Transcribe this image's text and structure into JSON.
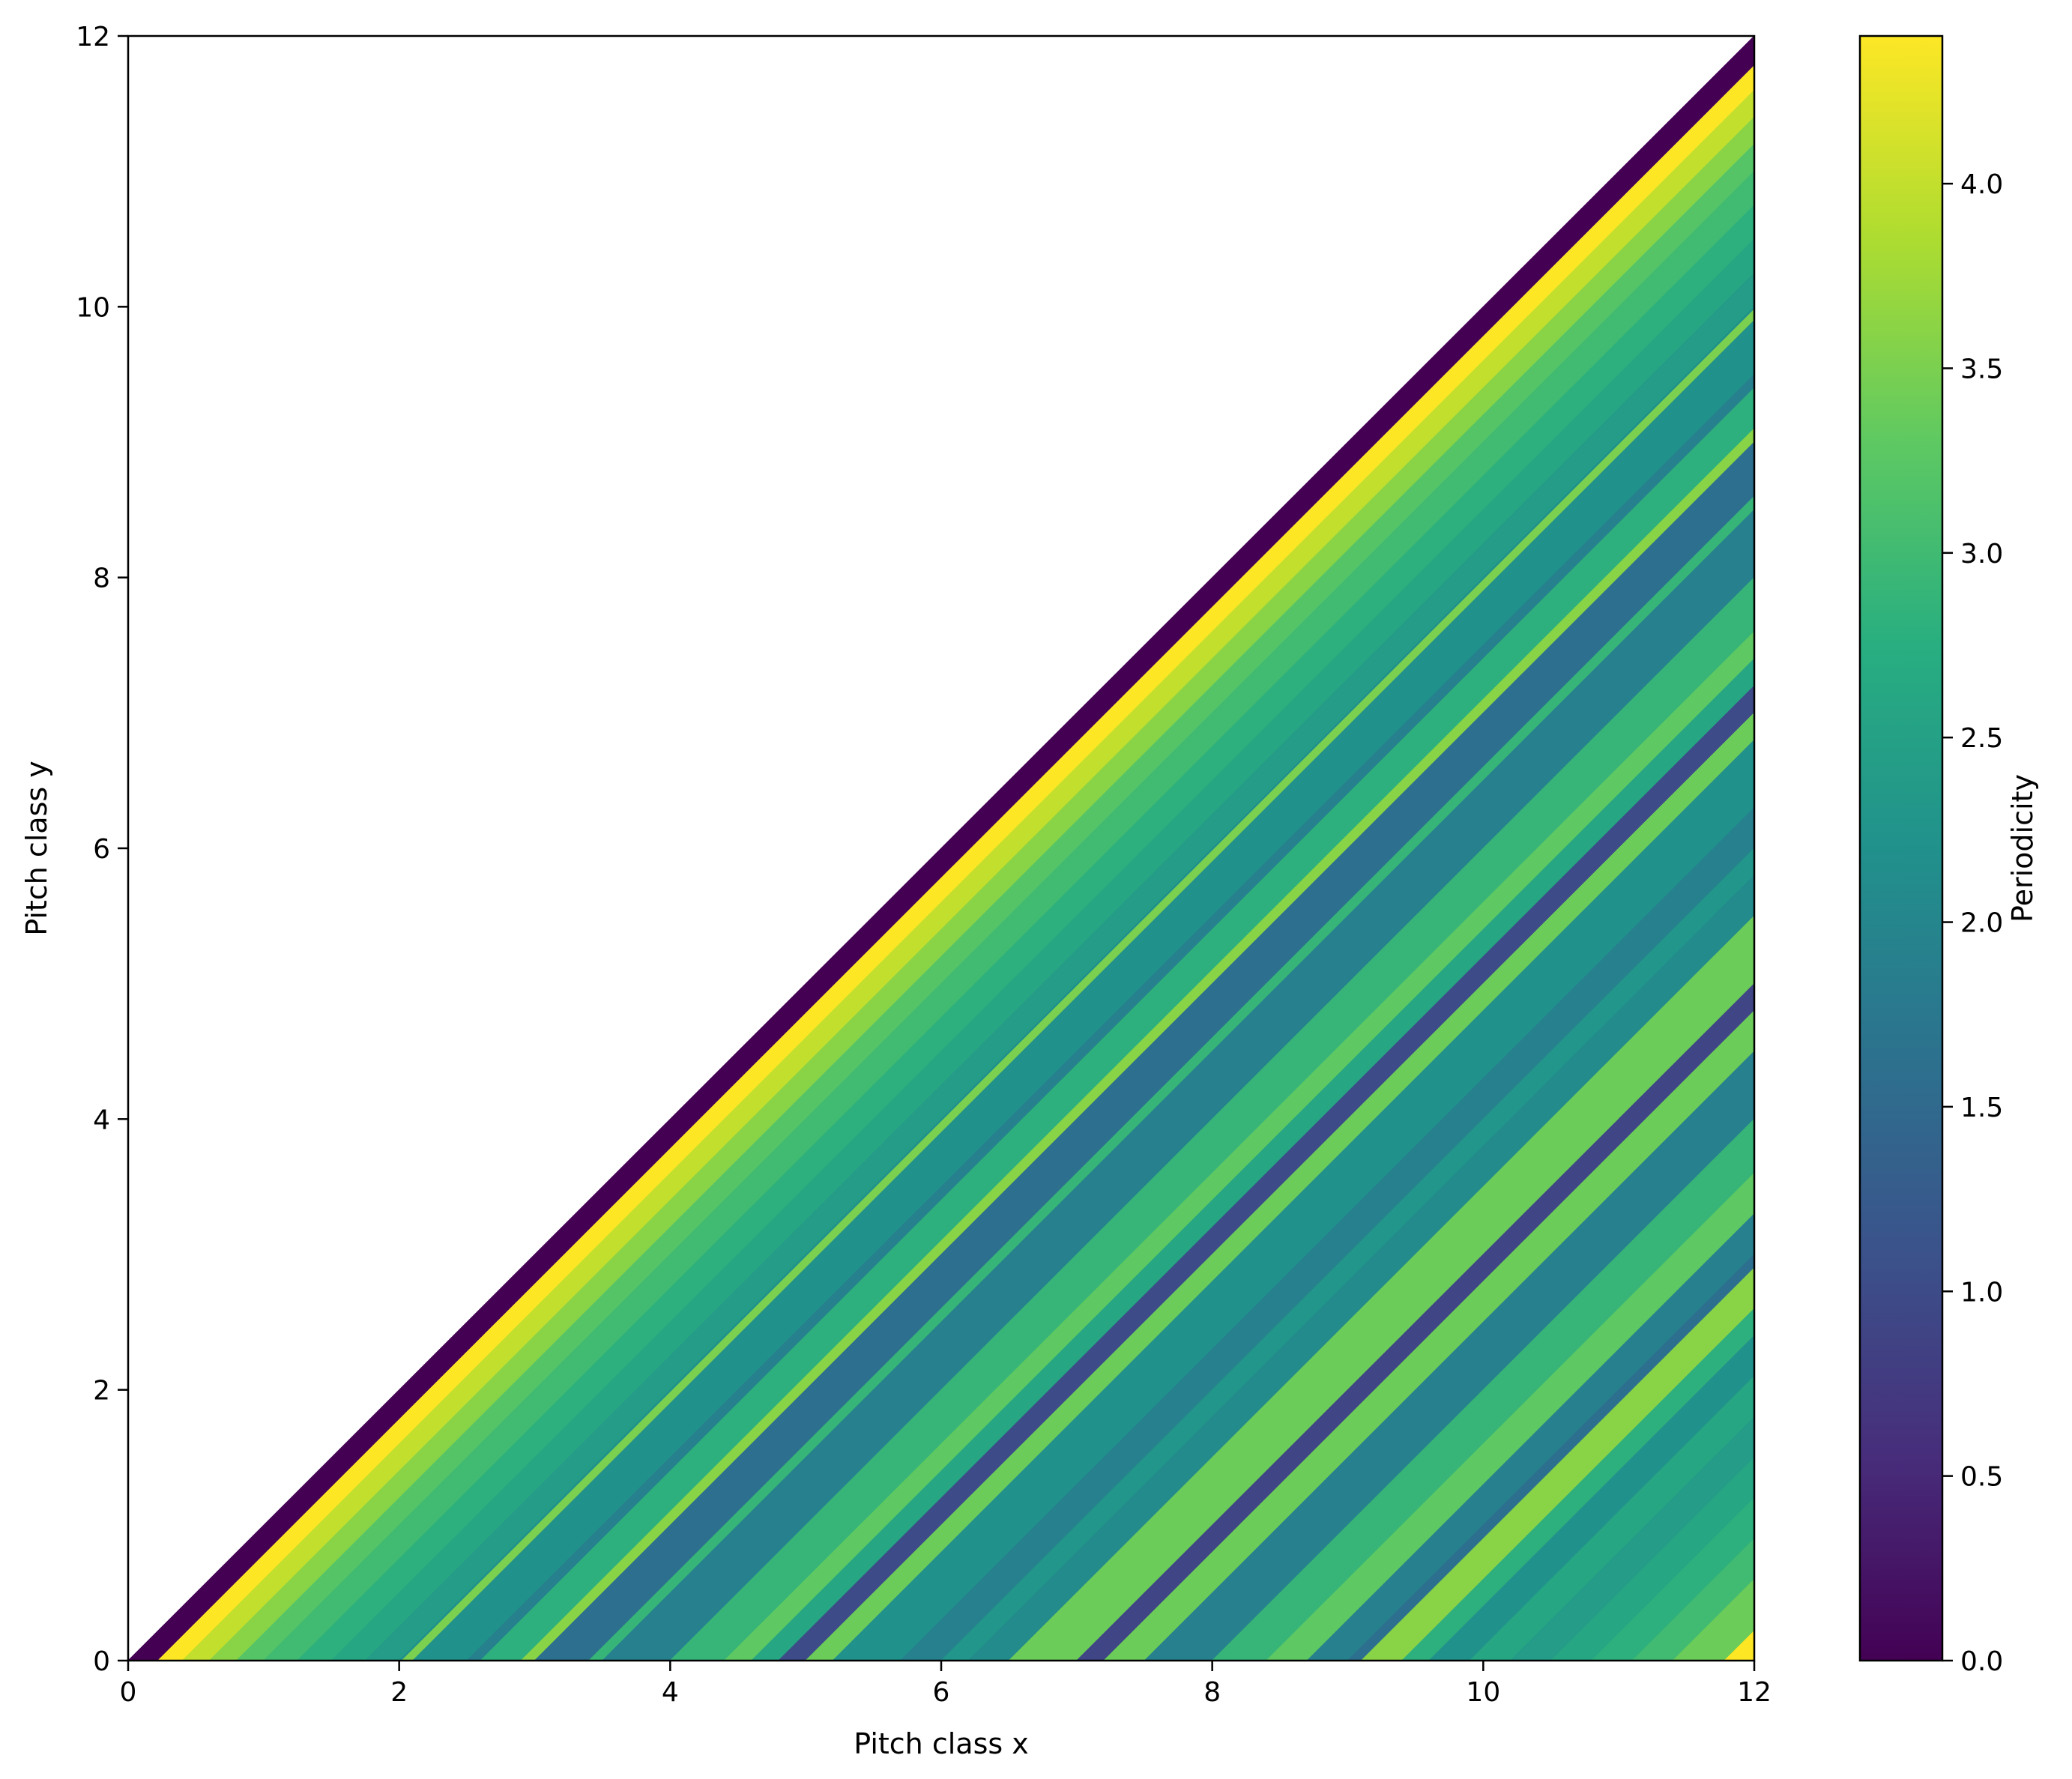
{
  "chart_data": {
    "type": "heatmap",
    "title": "",
    "xlabel": "Pitch class x",
    "ylabel": "Pitch class y",
    "xlim": [
      0,
      12
    ],
    "ylim": [
      0,
      12
    ],
    "x_ticks": [
      "0",
      "2",
      "4",
      "6",
      "8",
      "10",
      "12"
    ],
    "y_ticks": [
      "0",
      "2",
      "4",
      "6",
      "8",
      "10",
      "12"
    ],
    "region": "lower-right triangle (y <= x)",
    "bands_by_difference": {
      "description": "Periodicity is constant along diagonals; value depends on d = x - y",
      "d": [
        0.0,
        0.22,
        0.4,
        0.6,
        0.8,
        1.0,
        1.25,
        1.5,
        1.75,
        2.0,
        2.02,
        2.1,
        2.5,
        2.6,
        2.9,
        3.0,
        3.4,
        3.5,
        4.0,
        4.4,
        4.6,
        4.8,
        5.0,
        5.2,
        5.7,
        6.0,
        6.2,
        6.5,
        7.0,
        7.2,
        7.5,
        8.0,
        8.4,
        8.7,
        9.0,
        9.1,
        9.4,
        9.6,
        9.9,
        10.2,
        10.5,
        10.8,
        11.1,
        11.4,
        11.78,
        12.0
      ],
      "value": [
        0.0,
        4.4,
        4.0,
        3.6,
        3.2,
        3.0,
        2.8,
        2.6,
        2.4,
        2.2,
        3.5,
        2.2,
        1.9,
        2.8,
        3.6,
        1.6,
        2.9,
        1.9,
        2.9,
        3.3,
        2.6,
        1.0,
        3.4,
        2.2,
        1.9,
        2.3,
        2.1,
        3.4,
        0.9,
        3.4,
        1.9,
        2.9,
        3.3,
        1.9,
        1.6,
        3.6,
        2.8,
        2.2,
        2.6,
        2.4,
        2.6,
        2.8,
        3.0,
        3.4,
        4.4,
        0.0
      ]
    },
    "colorbar": {
      "label": "Periodicity",
      "min": 0.0,
      "max": 4.4,
      "ticks": [
        "0.0",
        "0.5",
        "1.0",
        "1.5",
        "2.0",
        "2.5",
        "3.0",
        "3.5",
        "4.0"
      ],
      "colormap": "viridis",
      "placement": "right"
    },
    "grid": false
  }
}
